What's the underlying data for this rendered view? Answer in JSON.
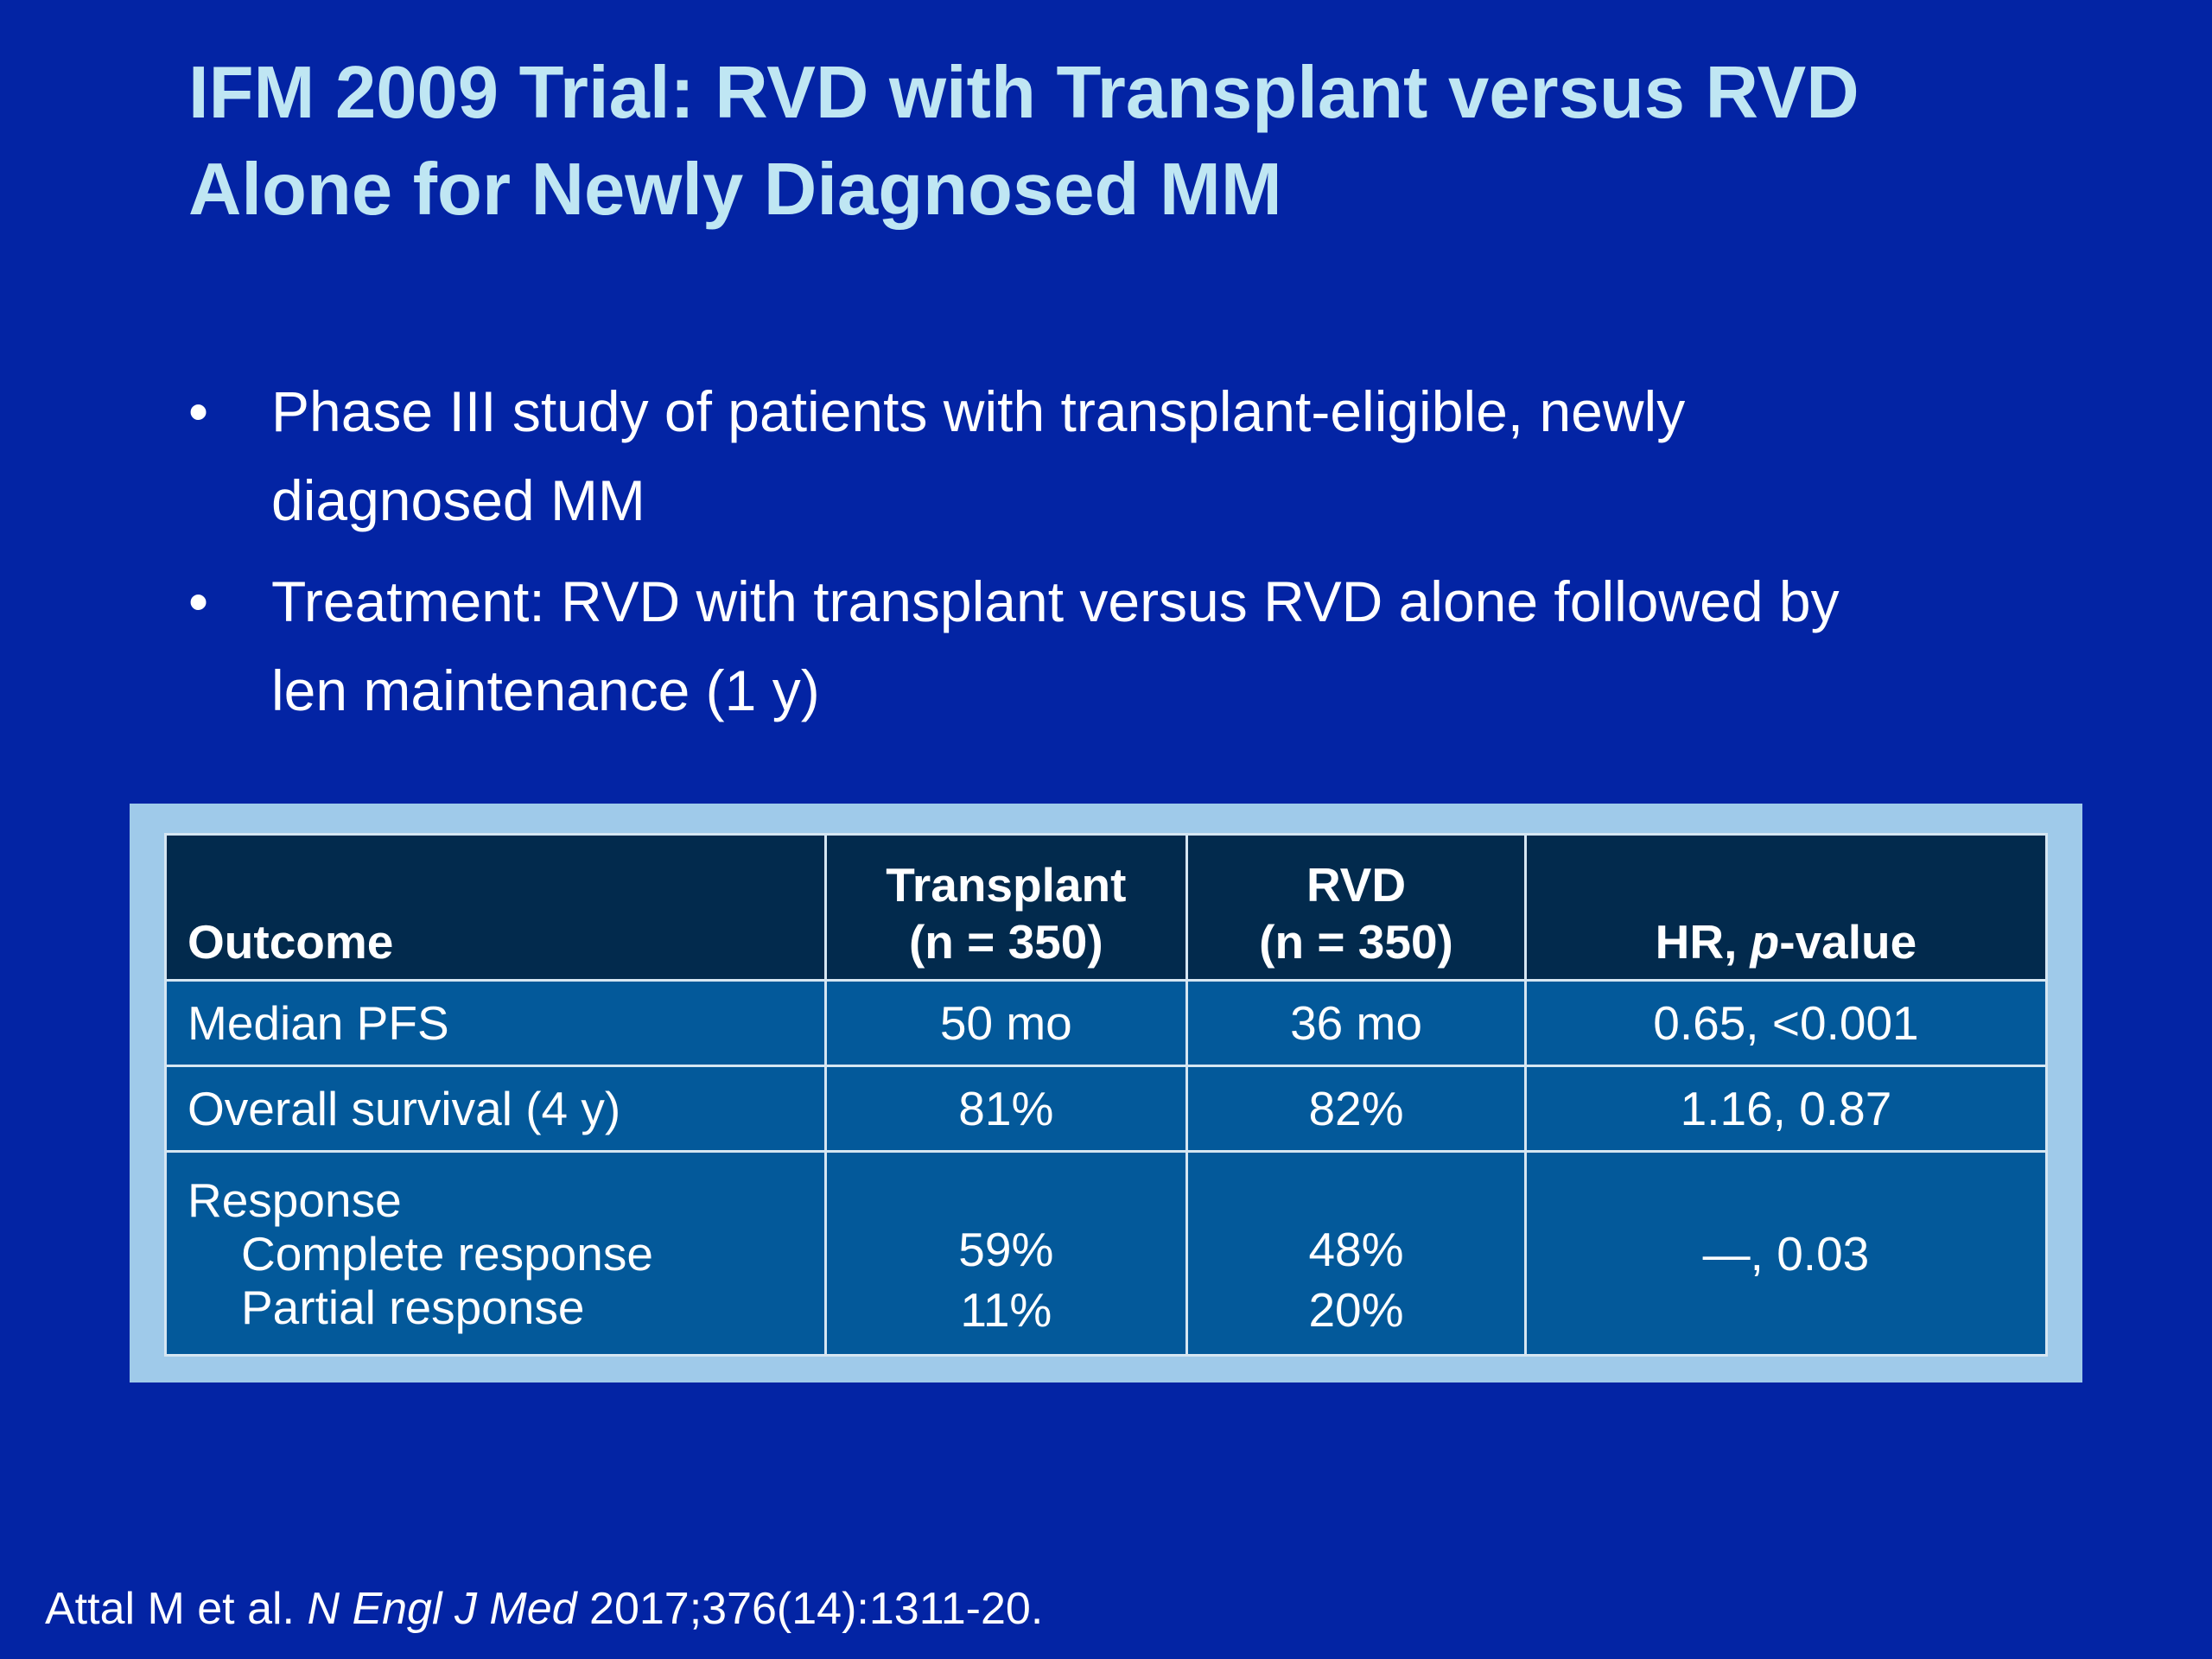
{
  "title": {
    "line1": "IFM 2009 Trial: RVD with Transplant versus RVD",
    "line2": "Alone for Newly Diagnosed MM"
  },
  "bullets": [
    {
      "symbol": "•",
      "line1": "Phase III study of patients with transplant-eligible, newly",
      "line2": "diagnosed MM"
    },
    {
      "symbol": "•",
      "line1": "Treatment: RVD with transplant versus RVD alone followed by",
      "line2": "len maintenance (1 y)"
    }
  ],
  "table": {
    "header": {
      "outcome": "Outcome",
      "transplant_l1": "Transplant",
      "transplant_l2": "(n = 350)",
      "rvd_l1": "RVD",
      "rvd_l2": "(n = 350)",
      "hr_prefix": "HR, ",
      "hr_italic": "p",
      "hr_suffix": "-value"
    },
    "rows": [
      {
        "outcome": "Median PFS",
        "transplant": "50 mo",
        "rvd": "36 mo",
        "hr": "0.65, <0.001"
      },
      {
        "outcome": "Overall survival (4 y)",
        "transplant": "81%",
        "rvd": "82%",
        "hr": "1.16, 0.87"
      },
      {
        "outcome": "Response",
        "sub1": "Complete response",
        "sub2": "Partial response",
        "transplant1": "59%",
        "transplant2": "11%",
        "rvd1": "48%",
        "rvd2": "20%",
        "hr": "—, 0.03"
      }
    ]
  },
  "citation": {
    "authors": "Attal M et al. ",
    "journal": "N Engl J Med",
    "details": " 2017;376(14):1311-20."
  },
  "colors": {
    "background": "#0324a4",
    "title": "#bfe6f3",
    "table_frame": "#9fcaea",
    "table_header": "#022a4d",
    "table_body": "#03599a"
  }
}
